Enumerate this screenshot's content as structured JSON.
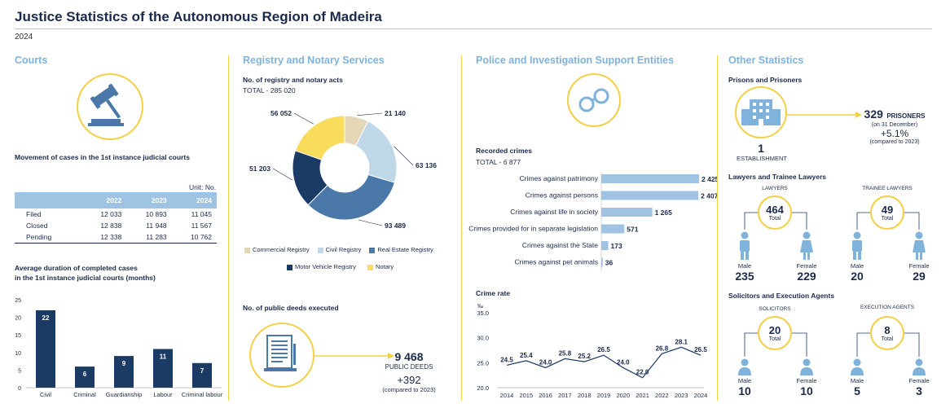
{
  "header": {
    "title": "Justice Statistics of the Autonomous Region of Madeira",
    "year": "2024"
  },
  "courts": {
    "section_title": "Courts",
    "movement_title": "Movement of cases in the 1st instance judicial courts",
    "unit": "Unit: No.",
    "table": {
      "headers": [
        "",
        "2022",
        "2023",
        "2024"
      ],
      "rows": [
        {
          "label": "Filed",
          "values": [
            "12 033",
            "10 893",
            "11 045"
          ]
        },
        {
          "label": "Closed",
          "values": [
            "12 838",
            "11 948",
            "11 567"
          ]
        },
        {
          "label": "Pending",
          "values": [
            "12 338",
            "11 283",
            "10 762"
          ]
        }
      ]
    },
    "duration_title_1": "Average duration of completed cases",
    "duration_title_2": "in the 1st instance judicial courts (months)"
  },
  "registry": {
    "section_title": "Registry and Notary Services",
    "acts_title": "No. of registry and notary acts",
    "acts_total": "TOTAL - 285 020",
    "deeds_title": "No. of public deeds executed",
    "deeds_value": "9 468",
    "deeds_label": "PUBLIC DEEDS",
    "deeds_change": "+392",
    "deeds_change_note": "(compared to 2023)"
  },
  "police": {
    "section_title": "Police and Investigation Support Entities",
    "crimes_title": "Recorded crimes",
    "crimes_total": "TOTAL - 6 877",
    "rate_title": "Crime rate",
    "rate_unit": "‰"
  },
  "other": {
    "section_title": "Other Statistics",
    "prisons_title": "Prisons and Prisoners",
    "establishment_value": "1",
    "establishment_label": "ESTABLISHMENT",
    "prisoners_value": "329",
    "prisoners_label": "PRISONERS",
    "prisoners_note": "(on 31 December)",
    "prisoners_change": "+5.1%",
    "prisoners_change_note": "(compared to 2023)",
    "lawyers_title": "Lawyers and Trainee Lawyers",
    "lawyers": {
      "label": "LAWYERS",
      "total": "464",
      "total_label": "Total",
      "male_label": "Male",
      "male": "235",
      "female_label": "Female",
      "female": "229"
    },
    "trainees": {
      "label": "TRAINEE LAWYERS",
      "total": "49",
      "total_label": "Total",
      "male_label": "Male",
      "male": "20",
      "female_label": "Female",
      "female": "29"
    },
    "solicitors_title": "Solicitors and Execution Agents",
    "solicitors": {
      "label": "SOLICITORS",
      "total": "20",
      "total_label": "Total",
      "male_label": "Male",
      "male": "10",
      "female_label": "Female",
      "female": "10"
    },
    "agents": {
      "label": "EXECUTION AGENTS",
      "total": "8",
      "total_label": "Total",
      "male_label": "Male",
      "male": "5",
      "female_label": "Female",
      "female": "3"
    }
  },
  "colors": {
    "navy": "#1b3a64",
    "light_blue": "#9fc4e3",
    "accent_yellow": "#f2d046",
    "section_blue": "#7fb3db"
  },
  "chart_data": [
    {
      "type": "bar",
      "categories": [
        "Civil",
        "Criminal",
        "Guardianship",
        "Labour",
        "Criminal labour"
      ],
      "values": [
        22,
        6,
        9,
        11,
        7
      ],
      "ylim": [
        0,
        25
      ],
      "yticks": [
        "0",
        "5",
        "10",
        "15",
        "20",
        "25"
      ]
    },
    {
      "type": "pie",
      "categories": [
        "Commercial Registry",
        "Civil Registry",
        "Real Estate Registry",
        "Motor Vehicle Registry",
        "Notary"
      ],
      "values": [
        21140,
        63136,
        93489,
        51203,
        56052
      ],
      "value_labels": [
        "21 140",
        "63 136",
        "93 489",
        "51 203",
        "56 052"
      ],
      "colors": [
        "#e3d7b8",
        "#bfd8e8",
        "#4a78a8",
        "#1b3a64",
        "#f9dc5c"
      ]
    },
    {
      "type": "bar",
      "orientation": "horizontal",
      "categories": [
        "Crimes against patrimony",
        "Crimes against persons",
        "Crimes against life in society",
        "Crimes provided for in separate legislation",
        "Crimes against the State",
        "Crimes against pet animals"
      ],
      "values": [
        2425,
        2407,
        1265,
        571,
        173,
        36
      ],
      "value_labels": [
        "2 425",
        "2 407",
        "1 265",
        "571",
        "173",
        "36"
      ]
    },
    {
      "type": "line",
      "x": [
        "2014",
        "2015",
        "2016",
        "2017",
        "2018",
        "2019",
        "2020",
        "2021",
        "2022",
        "2023",
        "2024"
      ],
      "values": [
        24.5,
        25.4,
        24.0,
        25.8,
        25.2,
        26.5,
        24.0,
        22.0,
        26.8,
        28.1,
        26.5
      ],
      "value_labels": [
        "24.5",
        "25.4",
        "24.0",
        "25.8",
        "25.2",
        "26.5",
        "24.0",
        "22.0",
        "26.8",
        "28.1",
        "26.5"
      ],
      "ylim": [
        20,
        35
      ],
      "yticks": [
        "20.0",
        "25.0",
        "30.0",
        "35.0"
      ]
    }
  ]
}
